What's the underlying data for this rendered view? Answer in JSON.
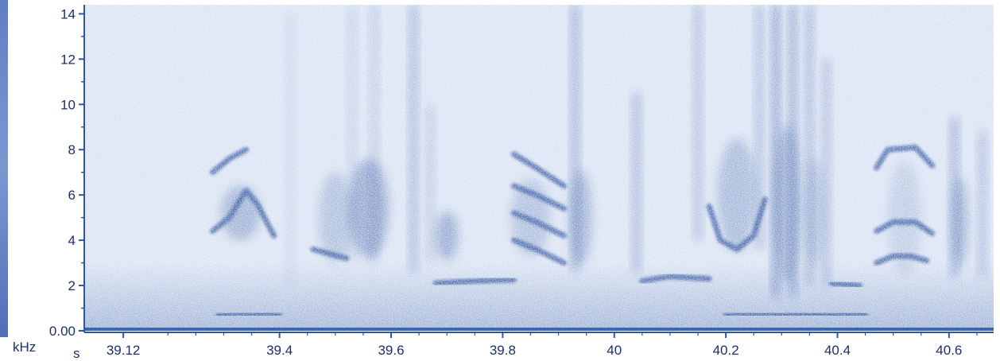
{
  "chart_data": {
    "type": "heatmap",
    "title": "",
    "xlabel": "s",
    "ylabel": "kHz",
    "xlim": [
      39.05,
      40.68
    ],
    "ylim": [
      0,
      14.4
    ],
    "x_ticks": [
      {
        "value": 39.12,
        "label": "39.12"
      },
      {
        "value": 39.4,
        "label": "39.4"
      },
      {
        "value": 39.6,
        "label": "39.6"
      },
      {
        "value": 39.8,
        "label": "39.8"
      },
      {
        "value": 40.0,
        "label": "40"
      },
      {
        "value": 40.2,
        "label": "40.2"
      },
      {
        "value": 40.4,
        "label": "40.4"
      },
      {
        "value": 40.6,
        "label": "40.6"
      }
    ],
    "y_ticks": [
      {
        "value": 0,
        "label": "0.00"
      },
      {
        "value": 2,
        "label": "2"
      },
      {
        "value": 4,
        "label": "4"
      },
      {
        "value": 6,
        "label": "6"
      },
      {
        "value": 8,
        "label": "8"
      },
      {
        "value": 10,
        "label": "10"
      },
      {
        "value": 12,
        "label": "12"
      },
      {
        "value": 14,
        "label": "14"
      }
    ],
    "background_color": "#d8e2f3",
    "ink_color": "#2a4f9c",
    "traces": [
      {
        "name": "note-1",
        "points": [
          [
            39.28,
            4.4
          ],
          [
            39.31,
            5.0
          ],
          [
            39.34,
            6.2
          ],
          [
            39.36,
            5.6
          ],
          [
            39.39,
            4.2
          ]
        ]
      },
      {
        "name": "note-1-harmonic",
        "points": [
          [
            39.28,
            7.0
          ],
          [
            39.31,
            7.6
          ],
          [
            39.34,
            8.0
          ]
        ]
      },
      {
        "name": "note-2-low",
        "points": [
          [
            39.46,
            3.6
          ],
          [
            39.49,
            3.4
          ],
          [
            39.52,
            3.2
          ]
        ]
      },
      {
        "name": "note-3",
        "points": [
          [
            39.82,
            4.0
          ],
          [
            39.86,
            3.6
          ],
          [
            39.91,
            3.0
          ]
        ]
      },
      {
        "name": "note-3-mid",
        "points": [
          [
            39.82,
            5.2
          ],
          [
            39.86,
            4.8
          ],
          [
            39.91,
            4.2
          ]
        ]
      },
      {
        "name": "note-3-upper",
        "points": [
          [
            39.82,
            6.4
          ],
          [
            39.86,
            6.0
          ],
          [
            39.91,
            5.4
          ]
        ]
      },
      {
        "name": "note-3-top",
        "points": [
          [
            39.82,
            7.8
          ],
          [
            39.86,
            7.2
          ],
          [
            39.91,
            6.4
          ]
        ]
      },
      {
        "name": "low-hum-1",
        "points": [
          [
            39.68,
            2.1
          ],
          [
            39.75,
            2.2
          ],
          [
            39.82,
            2.25
          ]
        ]
      },
      {
        "name": "low-hum-2",
        "points": [
          [
            40.05,
            2.2
          ],
          [
            40.1,
            2.4
          ],
          [
            40.17,
            2.3
          ]
        ]
      },
      {
        "name": "low-hum-3",
        "points": [
          [
            40.39,
            2.1
          ],
          [
            40.44,
            2.0
          ]
        ]
      },
      {
        "name": "note-4-U",
        "points": [
          [
            40.17,
            5.5
          ],
          [
            40.19,
            4.0
          ],
          [
            40.22,
            3.6
          ],
          [
            40.25,
            4.2
          ],
          [
            40.27,
            5.8
          ]
        ]
      },
      {
        "name": "note-5-low",
        "points": [
          [
            40.47,
            3.0
          ],
          [
            40.5,
            3.3
          ],
          [
            40.53,
            3.3
          ],
          [
            40.56,
            3.1
          ]
        ]
      },
      {
        "name": "note-5-mid",
        "points": [
          [
            40.47,
            4.4
          ],
          [
            40.5,
            4.8
          ],
          [
            40.54,
            4.8
          ],
          [
            40.57,
            4.3
          ]
        ]
      },
      {
        "name": "note-5-top",
        "points": [
          [
            40.47,
            7.2
          ],
          [
            40.49,
            8.0
          ],
          [
            40.54,
            8.1
          ],
          [
            40.57,
            7.3
          ]
        ]
      },
      {
        "name": "baseline-1",
        "points": [
          [
            39.29,
            0.7
          ],
          [
            39.4,
            0.75
          ]
        ]
      },
      {
        "name": "baseline-2",
        "points": [
          [
            40.2,
            0.75
          ],
          [
            40.45,
            0.7
          ]
        ]
      }
    ],
    "blobs": [
      {
        "x": 39.33,
        "y": 5.2,
        "w": 0.07,
        "h": 2.4,
        "a": 0.35
      },
      {
        "x": 39.5,
        "y": 5.0,
        "w": 0.06,
        "h": 4.0,
        "a": 0.25
      },
      {
        "x": 39.56,
        "y": 5.4,
        "w": 0.07,
        "h": 4.4,
        "a": 0.42
      },
      {
        "x": 39.7,
        "y": 4.2,
        "w": 0.04,
        "h": 2.2,
        "a": 0.4
      },
      {
        "x": 39.85,
        "y": 5.0,
        "w": 0.07,
        "h": 3.4,
        "a": 0.25
      },
      {
        "x": 39.94,
        "y": 5.0,
        "w": 0.04,
        "h": 4.2,
        "a": 0.35
      },
      {
        "x": 40.22,
        "y": 6.0,
        "w": 0.07,
        "h": 5.0,
        "a": 0.3
      },
      {
        "x": 40.31,
        "y": 5.6,
        "w": 0.05,
        "h": 7.0,
        "a": 0.35
      },
      {
        "x": 40.36,
        "y": 5.2,
        "w": 0.03,
        "h": 5.0,
        "a": 0.25
      },
      {
        "x": 40.52,
        "y": 5.0,
        "w": 0.06,
        "h": 5.0,
        "a": 0.16
      },
      {
        "x": 40.62,
        "y": 4.8,
        "w": 0.03,
        "h": 4.0,
        "a": 0.35
      }
    ],
    "vertical_streaks": [
      {
        "x": 39.42,
        "y0": 2.0,
        "y1": 14.0,
        "a": 0.1
      },
      {
        "x": 39.53,
        "y0": 3.0,
        "y1": 14.4,
        "a": 0.15
      },
      {
        "x": 39.57,
        "y0": 3.0,
        "y1": 14.4,
        "a": 0.2
      },
      {
        "x": 39.64,
        "y0": 2.6,
        "y1": 14.4,
        "a": 0.35
      },
      {
        "x": 39.67,
        "y0": 3.0,
        "y1": 10.0,
        "a": 0.2
      },
      {
        "x": 39.93,
        "y0": 2.6,
        "y1": 14.4,
        "a": 0.4
      },
      {
        "x": 40.04,
        "y0": 2.6,
        "y1": 10.5,
        "a": 0.35
      },
      {
        "x": 40.15,
        "y0": 4.0,
        "y1": 14.4,
        "a": 0.3
      },
      {
        "x": 40.26,
        "y0": 3.6,
        "y1": 14.4,
        "a": 0.3
      },
      {
        "x": 40.29,
        "y0": 1.5,
        "y1": 14.4,
        "a": 0.5
      },
      {
        "x": 40.32,
        "y0": 1.5,
        "y1": 14.4,
        "a": 0.45
      },
      {
        "x": 40.35,
        "y0": 2.0,
        "y1": 14.4,
        "a": 0.35
      },
      {
        "x": 40.38,
        "y0": 2.0,
        "y1": 12.0,
        "a": 0.3
      },
      {
        "x": 40.61,
        "y0": 2.4,
        "y1": 9.4,
        "a": 0.4
      },
      {
        "x": 40.66,
        "y0": 2.4,
        "y1": 8.8,
        "a": 0.3
      }
    ]
  }
}
